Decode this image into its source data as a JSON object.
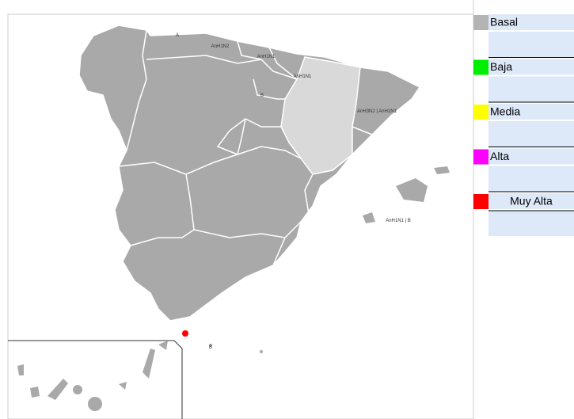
{
  "legend": {
    "items": [
      {
        "label": "Basal",
        "color": "#b4b4b4"
      },
      {
        "label": "Baja",
        "color": "#00ee00"
      },
      {
        "label": "Media",
        "color": "#ffff00"
      },
      {
        "label": "Alta",
        "color": "#ff00ff"
      },
      {
        "label": "Muy Alta",
        "color": "#ff0000"
      }
    ]
  },
  "map": {
    "labels": [
      "A",
      "AnH1N2",
      "AnH1N1",
      "AnH1N1",
      "B",
      "AnH3N2 | AnH1N1",
      "AnH1N1 | B",
      "B"
    ]
  }
}
